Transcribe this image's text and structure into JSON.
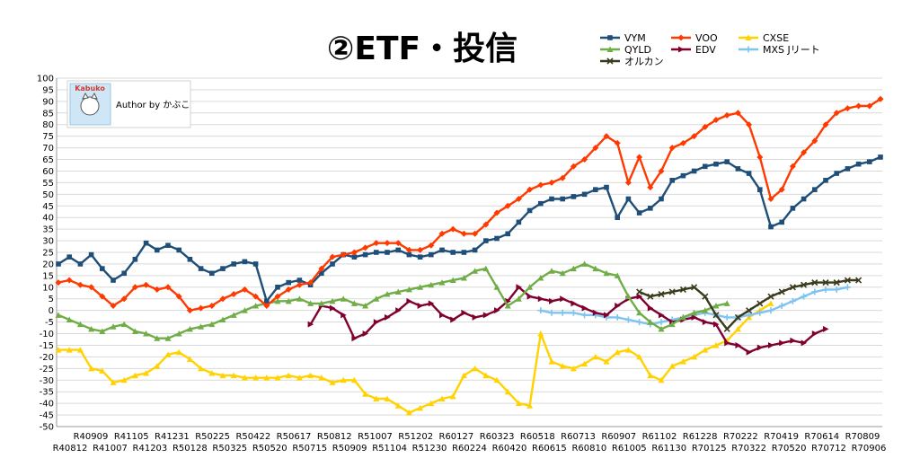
{
  "chart_data": {
    "type": "line",
    "title": "②ETF・投信",
    "ylim": [
      -50,
      100
    ],
    "ytick_step": 5,
    "grid": true,
    "legend_position": "top-right",
    "x_tick_labels_top": [
      "R40909",
      "R41105",
      "R41231",
      "R50225",
      "R50422",
      "R50617",
      "R50812",
      "R51007",
      "R51202",
      "R60127",
      "R60323",
      "R60518",
      "R60713",
      "R60907",
      "R61102",
      "R61228",
      "R70222",
      "R70419",
      "R70614",
      "R70809"
    ],
    "x_tick_labels_bottom": [
      "R40812",
      "R41007",
      "R41203",
      "R50128",
      "R50325",
      "R50520",
      "R50715",
      "R50909",
      "R51104",
      "R51230",
      "R60224",
      "R60420",
      "R60615",
      "R60810",
      "R61005",
      "R61130",
      "R70125",
      "R70322",
      "R70520",
      "R70712",
      "R70906"
    ],
    "series": [
      {
        "name": "VYM",
        "color": "#1f4e79",
        "marker": "square",
        "start": 0,
        "values": [
          20,
          23,
          20,
          24,
          18,
          13,
          16,
          22,
          29,
          26,
          28,
          26,
          22,
          18,
          16,
          18,
          20,
          21,
          20,
          4,
          10,
          12,
          13,
          11,
          16,
          20,
          24,
          23,
          24,
          25,
          25,
          26,
          24,
          23,
          24,
          26,
          25,
          25,
          26,
          30,
          31,
          33,
          38,
          43,
          46,
          48,
          48,
          49,
          50,
          52,
          53,
          40,
          48,
          42,
          44,
          48,
          56,
          58,
          60,
          62,
          63,
          64,
          61,
          59,
          52,
          36,
          38,
          44,
          48,
          52,
          56,
          59,
          61,
          63,
          64,
          66
        ]
      },
      {
        "name": "VOO",
        "color": "#ff3a00",
        "marker": "diamond",
        "start": 0,
        "values": [
          12,
          13,
          11,
          10,
          6,
          2,
          5,
          10,
          11,
          9,
          10,
          6,
          0,
          1,
          2,
          5,
          7,
          9,
          6,
          2,
          6,
          9,
          11,
          12,
          18,
          23,
          24,
          25,
          27,
          29,
          29,
          29,
          26,
          26,
          28,
          33,
          35,
          33,
          33,
          37,
          42,
          45,
          48,
          52,
          54,
          55,
          57,
          62,
          65,
          70,
          75,
          72,
          55,
          66,
          53,
          60,
          70,
          72,
          75,
          79,
          82,
          84,
          85,
          80,
          66,
          48,
          52,
          62,
          68,
          73,
          80,
          85,
          87,
          88,
          88,
          91
        ]
      },
      {
        "name": "CXSE",
        "color": "#ffd200",
        "marker": "triangle",
        "start": 0,
        "values": [
          -17,
          -17,
          -17,
          -25,
          -26,
          -31,
          -30,
          -28,
          -27,
          -24,
          -19,
          -18,
          -21,
          -25,
          -27,
          -28,
          -28,
          -29,
          -29,
          -29,
          -29,
          -28,
          -29,
          -28,
          -29,
          -31,
          -30,
          -30,
          -36,
          -38,
          -38,
          -41,
          -44,
          -42,
          -40,
          -38,
          -37,
          -28,
          -25,
          -28,
          -30,
          -35,
          -40,
          -41,
          -10,
          -22,
          -24,
          -25,
          -23,
          -20,
          -22,
          -18,
          -17,
          -20,
          -28,
          -30,
          -24,
          -22,
          -20,
          -17,
          -15,
          -13,
          -8,
          -3,
          0,
          3
        ]
      },
      {
        "name": "QYLD",
        "color": "#70ad47",
        "marker": "triangle",
        "start": 0,
        "values": [
          -2,
          -4,
          -6,
          -8,
          -9,
          -7,
          -6,
          -9,
          -10,
          -12,
          -12,
          -10,
          -8,
          -7,
          -6,
          -4,
          -2,
          0,
          2,
          3,
          4,
          4,
          5,
          3,
          3,
          4,
          5,
          3,
          2,
          5,
          7,
          8,
          9,
          10,
          11,
          12,
          13,
          14,
          17,
          18,
          10,
          2,
          5,
          10,
          14,
          17,
          16,
          18,
          20,
          18,
          16,
          15,
          6,
          -1,
          -5,
          -8,
          -6,
          -3,
          -1,
          0,
          2,
          3
        ]
      },
      {
        "name": "EDV",
        "color": "#800030",
        "marker": "triangle-right",
        "start": 23,
        "values": [
          -6,
          2,
          1,
          -2,
          -12,
          -10,
          -5,
          -3,
          0,
          4,
          2,
          3,
          -2,
          -4,
          -1,
          -3,
          -2,
          0,
          4,
          10,
          6,
          5,
          4,
          5,
          3,
          1,
          -1,
          -2,
          2,
          5,
          6,
          1,
          -2,
          -5,
          -4,
          -3,
          -5,
          -6,
          -14,
          -15,
          -18,
          -16,
          -15,
          -14,
          -13,
          -14,
          -10,
          -8
        ]
      },
      {
        "name": "MXS Jリート",
        "color": "#7fc4f0",
        "marker": "cross",
        "start": 44,
        "values": [
          0,
          -1,
          -1,
          -1,
          -2,
          -2,
          -3,
          -3,
          -4,
          -5,
          -6,
          -5,
          -4,
          -3,
          -2,
          -1,
          -2,
          -3,
          -3,
          -2,
          -1,
          0,
          2,
          4,
          6,
          8,
          9,
          9,
          10
        ]
      },
      {
        "name": "オルカン",
        "color": "#3a3a1c",
        "marker": "x",
        "start": 53,
        "values": [
          8,
          6,
          7,
          8,
          9,
          10,
          6,
          -2,
          -8,
          -3,
          0,
          3,
          6,
          8,
          10,
          11,
          12,
          12,
          12,
          13,
          13
        ]
      }
    ]
  },
  "author_badge": {
    "logo_text": "Kabuko",
    "label": "Author by かぶこ"
  }
}
